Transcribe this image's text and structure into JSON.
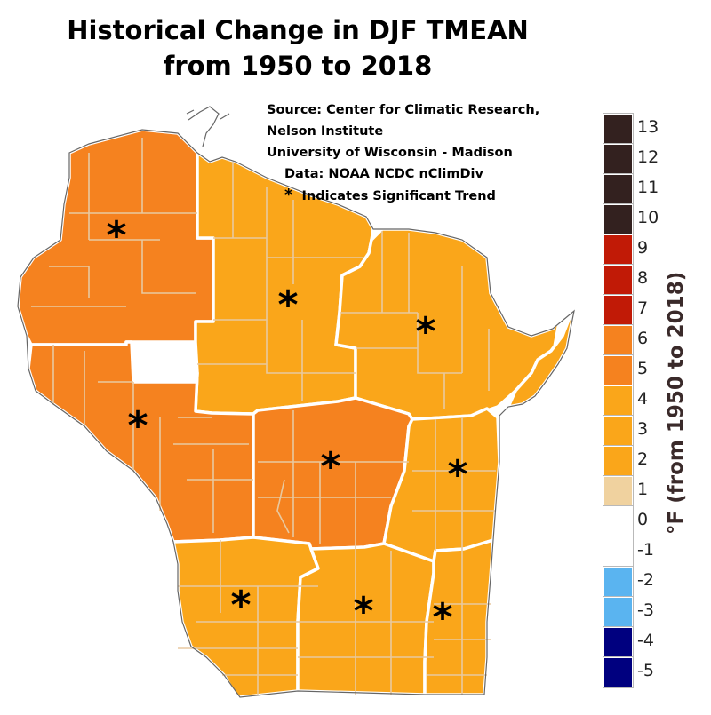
{
  "title": {
    "line1": "Historical Change in DJF TMEAN",
    "line2": "from 1950 to 2018"
  },
  "source": {
    "line1": "Source:  Center for Climatic Research,",
    "line2": "Nelson Institute",
    "line3": "University of Wisconsin - Madison",
    "line4": "Data: NOAA NCDC nClimDiv",
    "line5": "Indicates Significant Trend",
    "star_symbol": "*"
  },
  "legend": {
    "title": "°F (from 1950 to 2018)",
    "items": [
      {
        "label": "13",
        "color": "#33211f"
      },
      {
        "label": "12",
        "color": "#33211f"
      },
      {
        "label": "11",
        "color": "#33211f"
      },
      {
        "label": "10",
        "color": "#33211f"
      },
      {
        "label": "9",
        "color": "#c11a06"
      },
      {
        "label": "8",
        "color": "#c11a06"
      },
      {
        "label": "7",
        "color": "#c11a06"
      },
      {
        "label": "6",
        "color": "#f5821f"
      },
      {
        "label": "5",
        "color": "#f5821f"
      },
      {
        "label": "4",
        "color": "#faa61a"
      },
      {
        "label": "3",
        "color": "#faa61a"
      },
      {
        "label": "2",
        "color": "#faa61a"
      },
      {
        "label": "1",
        "color": "#f0d29f"
      },
      {
        "label": "0",
        "color": "#ffffff"
      },
      {
        "label": "-1",
        "color": "#ffffff"
      },
      {
        "label": "-2",
        "color": "#5ab4f0"
      },
      {
        "label": "-3",
        "color": "#5ab4f0"
      },
      {
        "label": "-4",
        "color": "#00007f"
      },
      {
        "label": "-5",
        "color": "#00007f"
      }
    ]
  },
  "map": {
    "region": "Wisconsin",
    "boundary_color": "#ffffff",
    "outline_color": "#555555",
    "divisions": [
      {
        "id": "northwest",
        "bin": "5 to 6",
        "color": "#f5821f",
        "significant": true
      },
      {
        "id": "north-central",
        "bin": "2 to 4",
        "color": "#faa61a",
        "significant": true
      },
      {
        "id": "northeast",
        "bin": "2 to 4",
        "color": "#faa61a",
        "significant": true
      },
      {
        "id": "west-central",
        "bin": "5 to 6",
        "color": "#f5821f",
        "significant": true
      },
      {
        "id": "central",
        "bin": "5 to 6",
        "color": "#f5821f",
        "significant": true
      },
      {
        "id": "east-central",
        "bin": "2 to 4",
        "color": "#faa61a",
        "significant": true
      },
      {
        "id": "southwest",
        "bin": "2 to 4",
        "color": "#faa61a",
        "significant": true
      },
      {
        "id": "south-central",
        "bin": "2 to 4",
        "color": "#faa61a",
        "significant": true
      },
      {
        "id": "southeast",
        "bin": "2 to 4",
        "color": "#faa61a",
        "significant": true
      }
    ]
  }
}
